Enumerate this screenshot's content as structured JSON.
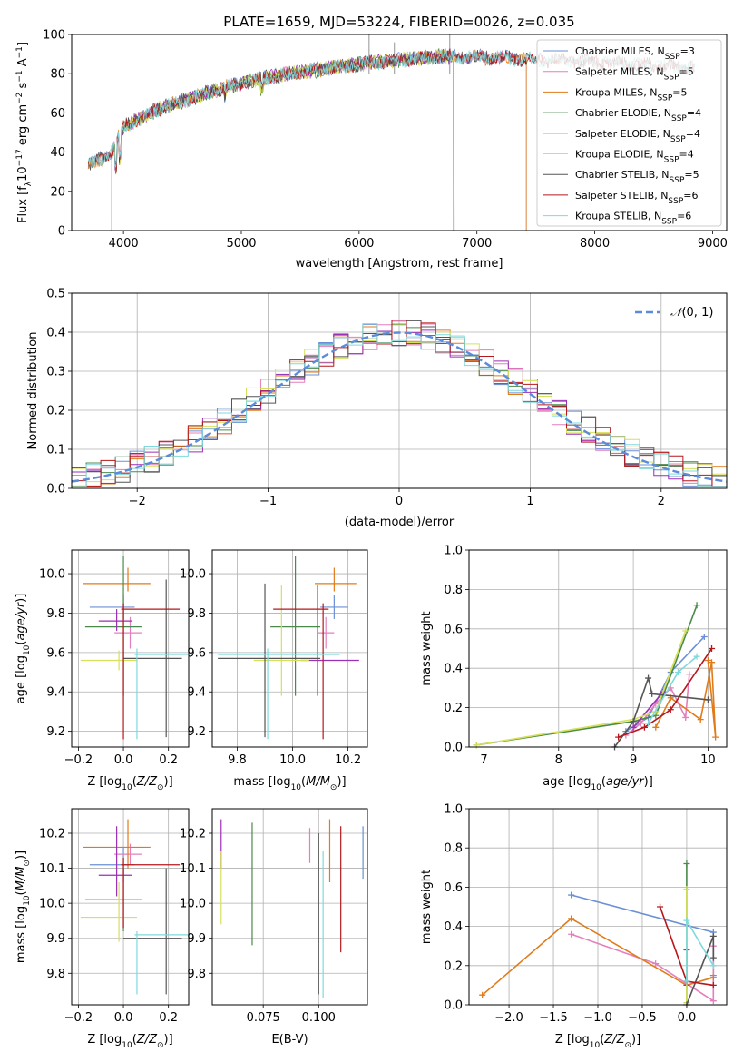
{
  "figure_title": "PLATE=1659, MJD=53224, FIBERID=0026, z=0.035",
  "colors": {
    "Chabrier MILES": "#6b8fd6",
    "Salpeter MILES": "#e47fbd",
    "Kroupa MILES": "#e07b1a",
    "Chabrier ELODIE": "#4a8a4a",
    "Salpeter ELODIE": "#9b2fb5",
    "Kroupa ELODIE": "#d6e05a",
    "Chabrier STELIB": "#555555",
    "Salpeter STELIB": "#b5171b",
    "Kroupa STELIB": "#7fd9dc",
    "normal": "#5b8bd9"
  },
  "chart_data": [
    {
      "id": "spectrum",
      "type": "line",
      "xlabel": "wavelength [Angstrom, rest frame]",
      "ylabel_parts": [
        "Flux [f",
        "λ",
        "10",
        "−17",
        " erg cm",
        "−2",
        " s",
        "−1",
        " A",
        "−1",
        "]"
      ],
      "xlim": [
        3560,
        9120
      ],
      "ylim": [
        0,
        100
      ],
      "xticks": [
        4000,
        5000,
        6000,
        7000,
        8000,
        9000
      ],
      "yticks": [
        0,
        20,
        40,
        60,
        80,
        100
      ],
      "legend_position": "top-right",
      "legend": [
        {
          "name": "Chabrier MILES",
          "nssp": "3"
        },
        {
          "name": "Salpeter MILES",
          "nssp": "5"
        },
        {
          "name": "Kroupa MILES",
          "nssp": "5"
        },
        {
          "name": "Chabrier ELODIE",
          "nssp": "4"
        },
        {
          "name": "Salpeter ELODIE",
          "nssp": "4"
        },
        {
          "name": "Kroupa ELODIE",
          "nssp": "4"
        },
        {
          "name": "Chabrier STELIB",
          "nssp": "5"
        },
        {
          "name": "Salpeter STELIB",
          "nssp": "6"
        },
        {
          "name": "Kroupa STELIB",
          "nssp": "6"
        }
      ],
      "continuum": {
        "x": [
          3700,
          3900,
          4000,
          4300,
          4800,
          5200,
          6000,
          6700,
          7200,
          8000,
          8850
        ],
        "y": [
          33,
          40,
          53,
          62,
          72,
          78,
          85,
          89,
          88,
          86,
          83
        ]
      },
      "ranges": {
        "Chabrier MILES": [
          3700,
          7420
        ],
        "Salpeter MILES": [
          3700,
          7420
        ],
        "Kroupa MILES": [
          3700,
          7420
        ],
        "Chabrier ELODIE": [
          3900,
          6800
        ],
        "Salpeter ELODIE": [
          3900,
          6800
        ],
        "Kroupa ELODIE": [
          3900,
          6800
        ],
        "Chabrier STELIB": [
          3700,
          8850
        ],
        "Salpeter STELIB": [
          3700,
          8850
        ],
        "Kroupa STELIB": [
          3700,
          8850
        ]
      }
    },
    {
      "id": "residuals",
      "type": "line",
      "xlabel": "(data-model)/error",
      "ylabel": "Normed distribution",
      "xlim": [
        -2.5,
        2.5
      ],
      "ylim": [
        0,
        0.5
      ],
      "xticks": [
        -2,
        -1,
        0,
        1,
        2
      ],
      "yticks": [
        0.0,
        0.1,
        0.2,
        0.3,
        0.4,
        0.5
      ],
      "grid": true,
      "legend_position": "top-right",
      "legend_label": "N(0,1)",
      "hist_bins": [
        -2.5,
        2.5,
        45
      ]
    },
    {
      "id": "age-vs-z",
      "type": "scatter",
      "xlabel": "Z [log10(Z/Z⊙)]",
      "ylabel": "age  [log10(age/yr)]",
      "xlim": [
        -0.23,
        0.29
      ],
      "ylim": [
        9.12,
        10.12
      ],
      "xticks": [
        -0.2,
        0.0,
        0.2
      ],
      "yticks": [
        9.2,
        9.4,
        9.6,
        9.8,
        10.0
      ],
      "grid": true,
      "points": [
        {
          "series": "Chabrier MILES",
          "x": 0.0,
          "xerr": [
            0.15,
            0.05
          ],
          "y": 9.83,
          "yerr": [
            0.06,
            0.06
          ]
        },
        {
          "series": "Salpeter MILES",
          "x": 0.03,
          "xerr": [
            0.07,
            0.05
          ],
          "y": 9.7,
          "yerr": [
            0.08,
            0.08
          ]
        },
        {
          "series": "Kroupa MILES",
          "x": 0.02,
          "xerr": [
            0.2,
            0.1
          ],
          "y": 9.95,
          "yerr": [
            0.04,
            0.08
          ]
        },
        {
          "series": "Chabrier ELODIE",
          "x": 0.0,
          "xerr": [
            0.17,
            0.08
          ],
          "y": 9.73,
          "yerr": [
            0.35,
            0.36
          ]
        },
        {
          "series": "Salpeter ELODIE",
          "x": -0.03,
          "xerr": [
            0.08,
            0.07
          ],
          "y": 9.76,
          "yerr": [
            0.05,
            0.06
          ]
        },
        {
          "series": "Kroupa ELODIE",
          "x": -0.02,
          "xerr": [
            0.17,
            0.08
          ],
          "y": 9.56,
          "yerr": [
            0.05,
            0.05
          ]
        },
        {
          "series": "Chabrier STELIB",
          "x": 0.19,
          "xerr": [
            0.19,
            0.07
          ],
          "y": 9.57,
          "yerr": [
            0.4,
            0.4
          ]
        },
        {
          "series": "Salpeter STELIB",
          "x": 0.0,
          "xerr": [
            0.01,
            0.25
          ],
          "y": 9.82,
          "yerr": [
            0.66,
            0.03
          ]
        },
        {
          "series": "Kroupa STELIB",
          "x": 0.06,
          "xerr": [
            0.01,
            0.23
          ],
          "y": 9.59,
          "yerr": [
            0.43,
            0.03
          ]
        }
      ]
    },
    {
      "id": "age-vs-mass",
      "type": "scatter",
      "xlabel": "mass [log10(M/M⊙)]",
      "ylabel": "",
      "xlim": [
        9.71,
        10.27
      ],
      "ylim": [
        9.12,
        10.12
      ],
      "xticks": [
        9.8,
        10.0,
        10.2
      ],
      "yticks": [
        9.2,
        9.4,
        9.6,
        9.8,
        10.0
      ],
      "grid": true,
      "points": [
        {
          "series": "Chabrier MILES",
          "x": 10.15,
          "xerr": [
            0.05,
            0.05
          ],
          "y": 9.83,
          "yerr": [
            0.06,
            0.06
          ]
        },
        {
          "series": "Salpeter MILES",
          "x": 10.12,
          "xerr": [
            0.03,
            0.03
          ],
          "y": 9.7,
          "yerr": [
            0.08,
            0.08
          ]
        },
        {
          "series": "Kroupa MILES",
          "x": 10.15,
          "xerr": [
            0.07,
            0.08
          ],
          "y": 9.95,
          "yerr": [
            0.04,
            0.08
          ]
        },
        {
          "series": "Chabrier ELODIE",
          "x": 10.01,
          "xerr": [
            0.09,
            0.09
          ],
          "y": 9.73,
          "yerr": [
            0.35,
            0.36
          ]
        },
        {
          "series": "Salpeter ELODIE",
          "x": 10.09,
          "xerr": [
            0.06,
            0.15
          ],
          "y": 9.56,
          "yerr": [
            0.18,
            0.38
          ]
        },
        {
          "series": "Kroupa ELODIE",
          "x": 9.96,
          "xerr": [
            0.1,
            0.1
          ],
          "y": 9.56,
          "yerr": [
            0.18,
            0.38
          ]
        },
        {
          "series": "Chabrier STELIB",
          "x": 9.9,
          "xerr": [
            0.17,
            0.2
          ],
          "y": 9.57,
          "yerr": [
            0.4,
            0.38
          ]
        },
        {
          "series": "Salpeter STELIB",
          "x": 10.11,
          "xerr": [
            0.18,
            0.02
          ],
          "y": 9.82,
          "yerr": [
            0.66,
            0.03
          ]
        },
        {
          "series": "Kroupa STELIB",
          "x": 9.91,
          "xerr": [
            0.18,
            0.26
          ],
          "y": 9.59,
          "yerr": [
            0.43,
            0.03
          ]
        }
      ]
    },
    {
      "id": "weight-vs-age",
      "type": "line",
      "xlabel": "age  [log10(age/yr)]",
      "ylabel": "mass weight",
      "xlim": [
        6.8,
        10.25
      ],
      "ylim": [
        0,
        1
      ],
      "xticks": [
        7,
        8,
        9,
        10
      ],
      "yticks": [
        0.0,
        0.2,
        0.4,
        0.6,
        0.8,
        1.0
      ],
      "grid": true,
      "series": [
        {
          "name": "Chabrier MILES",
          "x": [
            8.9,
            9.2,
            9.5,
            9.95
          ],
          "y": [
            0.08,
            0.15,
            0.38,
            0.56
          ]
        },
        {
          "name": "Salpeter MILES",
          "x": [
            8.9,
            9.1,
            9.3,
            9.5,
            9.7,
            9.75
          ],
          "y": [
            0.06,
            0.12,
            0.22,
            0.3,
            0.15,
            0.37
          ]
        },
        {
          "name": "Kroupa MILES",
          "x": [
            9.3,
            9.5,
            9.9,
            10.05,
            10.1,
            10.0
          ],
          "y": [
            0.1,
            0.25,
            0.14,
            0.43,
            0.05,
            0.44
          ]
        },
        {
          "name": "Chabrier ELODIE",
          "x": [
            6.9,
            9.0,
            9.3,
            9.85
          ],
          "y": [
            0.01,
            0.13,
            0.16,
            0.72
          ]
        },
        {
          "name": "Salpeter ELODIE",
          "x": [
            9.0,
            9.4
          ],
          "y": [
            0.1,
            0.28
          ]
        },
        {
          "name": "Kroupa ELODIE",
          "x": [
            6.9,
            9.0,
            9.3,
            9.7
          ],
          "y": [
            0.01,
            0.14,
            0.18,
            0.59
          ]
        },
        {
          "name": "Chabrier STELIB",
          "x": [
            8.75,
            9.0,
            9.2,
            9.25,
            10.0
          ],
          "y": [
            0.0,
            0.13,
            0.35,
            0.27,
            0.24
          ]
        },
        {
          "name": "Salpeter STELIB",
          "x": [
            8.8,
            9.15,
            9.5,
            10.05
          ],
          "y": [
            0.05,
            0.1,
            0.19,
            0.5
          ]
        },
        {
          "name": "Kroupa STELIB",
          "x": [
            9.2,
            9.6,
            9.85
          ],
          "y": [
            0.12,
            0.38,
            0.46
          ]
        }
      ]
    },
    {
      "id": "mass-vs-z",
      "type": "scatter",
      "xlabel": "Z [log10(Z/Z⊙)]",
      "ylabel": "mass [log10(M/M⊙)]",
      "xlim": [
        -0.23,
        0.29
      ],
      "ylim": [
        9.71,
        10.27
      ],
      "xticks": [
        -0.2,
        0.0,
        0.2
      ],
      "yticks": [
        9.8,
        9.9,
        10.0,
        10.1,
        10.2
      ],
      "grid": true,
      "points": [
        {
          "series": "Chabrier MILES",
          "x": 0.0,
          "xerr": [
            0.15,
            0.05
          ],
          "y": 10.11,
          "yerr": [
            0.05,
            0.05
          ]
        },
        {
          "series": "Salpeter MILES",
          "x": 0.03,
          "xerr": [
            0.07,
            0.05
          ],
          "y": 10.14,
          "yerr": [
            0.03,
            0.03
          ]
        },
        {
          "series": "Kroupa MILES",
          "x": 0.02,
          "xerr": [
            0.2,
            0.1
          ],
          "y": 10.16,
          "yerr": [
            0.06,
            0.08
          ]
        },
        {
          "series": "Chabrier ELODIE",
          "x": 0.0,
          "xerr": [
            0.17,
            0.08
          ],
          "y": 10.01,
          "yerr": [
            0.09,
            0.09
          ]
        },
        {
          "series": "Salpeter ELODIE",
          "x": -0.03,
          "xerr": [
            0.08,
            0.07
          ],
          "y": 10.08,
          "yerr": [
            0.06,
            0.14
          ]
        },
        {
          "series": "Kroupa ELODIE",
          "x": -0.02,
          "xerr": [
            0.17,
            0.08
          ],
          "y": 9.96,
          "yerr": [
            0.07,
            0.1
          ]
        },
        {
          "series": "Chabrier STELIB",
          "x": 0.19,
          "xerr": [
            0.19,
            0.07
          ],
          "y": 9.9,
          "yerr": [
            0.16,
            0.2
          ]
        },
        {
          "series": "Salpeter STELIB",
          "x": 0.0,
          "xerr": [
            0.01,
            0.25
          ],
          "y": 10.11,
          "yerr": [
            0.18,
            0.02
          ]
        },
        {
          "series": "Kroupa STELIB",
          "x": 0.06,
          "xerr": [
            0.01,
            0.23
          ],
          "y": 9.91,
          "yerr": [
            0.17,
            0.01
          ]
        }
      ]
    },
    {
      "id": "mass-vs-ebv",
      "type": "scatter",
      "xlabel": "E(B-V)",
      "ylabel": "",
      "xlim": [
        0.052,
        0.122
      ],
      "ylim": [
        9.71,
        10.27
      ],
      "xticks": [
        0.075,
        0.1
      ],
      "yticks": [
        9.8,
        9.9,
        10.0,
        10.1,
        10.2
      ],
      "grid": true,
      "points": [
        {
          "series": "Chabrier MILES",
          "x": 0.12,
          "y": 10.145,
          "yerr": [
            0.075,
            0.075
          ]
        },
        {
          "series": "Salpeter MILES",
          "x": 0.096,
          "y": 10.165,
          "yerr": [
            0.05,
            0.05
          ]
        },
        {
          "series": "Kroupa MILES",
          "x": 0.105,
          "y": 10.15,
          "yerr": [
            0.09,
            0.09
          ]
        },
        {
          "series": "Chabrier ELODIE",
          "x": 0.07,
          "y": 10.055,
          "yerr": [
            0.175,
            0.175
          ]
        },
        {
          "series": "Salpeter ELODIE",
          "x": 0.056,
          "y": 10.17,
          "yerr": [
            0.07,
            0.07
          ]
        },
        {
          "series": "Kroupa ELODIE",
          "x": 0.056,
          "y": 10.045,
          "yerr": [
            0.105,
            0.105
          ]
        },
        {
          "series": "Chabrier STELIB",
          "x": 0.1,
          "y": 9.97,
          "yerr": [
            0.23,
            0.23
          ]
        },
        {
          "series": "Salpeter STELIB",
          "x": 0.11,
          "y": 10.04,
          "yerr": [
            0.18,
            0.18
          ]
        },
        {
          "series": "Kroupa STELIB",
          "x": 0.102,
          "y": 9.94,
          "yerr": [
            0.21,
            0.21
          ]
        }
      ]
    },
    {
      "id": "weight-vs-z",
      "type": "line",
      "xlabel": "Z [log10(Z/Z⊙)]",
      "ylabel": "mass weight",
      "xlim": [
        -2.45,
        0.45
      ],
      "ylim": [
        0,
        1
      ],
      "xticks": [
        -2.0,
        -1.5,
        -1.0,
        -0.5,
        0.0
      ],
      "yticks": [
        0.0,
        0.2,
        0.4,
        0.6,
        0.8,
        1.0
      ],
      "grid": true,
      "series": [
        {
          "name": "Chabrier MILES",
          "x": [
            -1.3,
            0.3,
            0.3
          ],
          "y": [
            0.56,
            0.37,
            0.15
          ]
        },
        {
          "name": "Salpeter MILES",
          "x": [
            -1.3,
            -0.35,
            0.3,
            0.3
          ],
          "y": [
            0.36,
            0.21,
            0.02,
            0.3
          ]
        },
        {
          "name": "Kroupa MILES",
          "x": [
            -2.3,
            -1.3,
            0.0,
            0.3
          ],
          "y": [
            0.05,
            0.44,
            0.1,
            0.14
          ]
        },
        {
          "name": "Chabrier ELODIE",
          "x": [
            0.0,
            0.0
          ],
          "y": [
            0.01,
            0.72
          ]
        },
        {
          "name": "Salpeter ELODIE",
          "x": [
            0.0,
            0.0
          ],
          "y": [
            0.1,
            0.28
          ]
        },
        {
          "name": "Kroupa ELODIE",
          "x": [
            0.0,
            0.0
          ],
          "y": [
            0.01,
            0.59
          ]
        },
        {
          "name": "Chabrier STELIB",
          "x": [
            0.0,
            0.3,
            0.3
          ],
          "y": [
            0.0,
            0.35,
            0.24
          ]
        },
        {
          "name": "Salpeter STELIB",
          "x": [
            -0.3,
            0.0,
            0.3
          ],
          "y": [
            0.5,
            0.12,
            0.1
          ]
        },
        {
          "name": "Kroupa STELIB",
          "x": [
            0.0,
            0.0,
            0.3
          ],
          "y": [
            0.12,
            0.43,
            0.2
          ]
        }
      ]
    }
  ]
}
